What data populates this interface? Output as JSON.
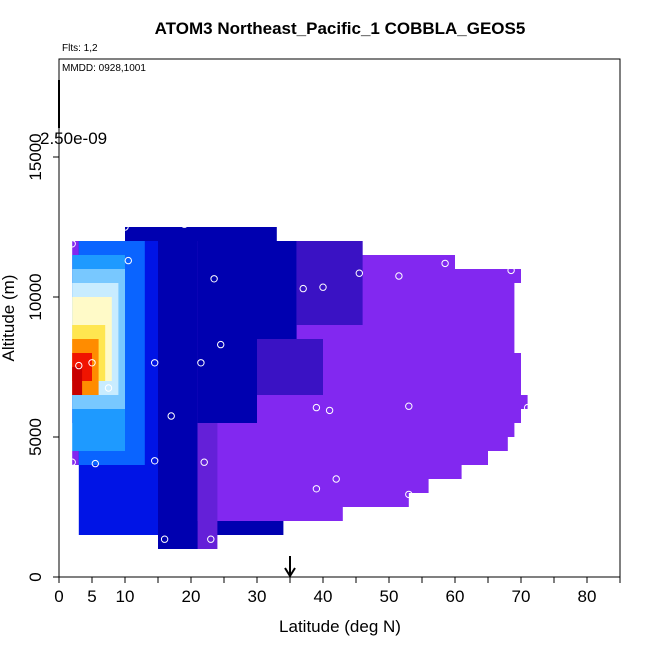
{
  "chart_data": {
    "type": "heatmap",
    "title": "ATOM3 Northeast_Pacific_1 COBBLA_GEOS5",
    "flights_label": "Flts: 1,2",
    "dates_label": "MMDD: 0928,1001",
    "colorbar_label": "2.50e-09",
    "xlabel": "Latitude (deg N)",
    "ylabel": "Altitude (m)",
    "xlim": [
      0,
      85
    ],
    "ylim": [
      0,
      18500
    ],
    "xticks": [
      0,
      5,
      10,
      20,
      30,
      40,
      50,
      60,
      70,
      80
    ],
    "xticks_minor": [
      15,
      25,
      35,
      45,
      55,
      65,
      75,
      85
    ],
    "yticks": [
      0,
      5000,
      10000,
      15000
    ],
    "marker_latitude": 35,
    "colors": {
      "purple": "#8228f0",
      "violet": "#6420d8",
      "indigo": "#3a12c4",
      "darkblue": "#0000b0",
      "blue": "#0014e6",
      "mid": "#0a64ff",
      "sky": "#1e9aff",
      "lightblue": "#78c8ff",
      "paleblue": "#c8ecff",
      "cream": "#fffac8",
      "yellow": "#ffe650",
      "orange": "#ff8c00",
      "red": "#f01400",
      "darkred": "#c80000"
    },
    "field": [
      {
        "lat_min": 16.0,
        "lat_max": 23.0,
        "alt_min": 1000,
        "alt_max": 1500,
        "color": "darkblue"
      },
      {
        "lat_min": 14.0,
        "lat_max": 34.0,
        "alt_min": 1500,
        "alt_max": 2000,
        "color": "darkblue"
      },
      {
        "lat_min": 12.0,
        "lat_max": 43.0,
        "alt_min": 2000,
        "alt_max": 2500,
        "color": "purple"
      },
      {
        "lat_min": 10.0,
        "lat_max": 53.0,
        "alt_min": 2500,
        "alt_max": 3000,
        "color": "purple"
      },
      {
        "lat_min": 8.0,
        "lat_max": 56.0,
        "alt_min": 3000,
        "alt_max": 3500,
        "color": "purple"
      },
      {
        "lat_min": 5.0,
        "lat_max": 61.0,
        "alt_min": 3500,
        "alt_max": 4000,
        "color": "purple"
      },
      {
        "lat_min": 2.0,
        "lat_max": 65.0,
        "alt_min": 4000,
        "alt_max": 4500,
        "color": "purple"
      },
      {
        "lat_min": 3.0,
        "lat_max": 68.0,
        "alt_min": 4500,
        "alt_max": 5000,
        "color": "purple"
      },
      {
        "lat_min": 3.0,
        "lat_max": 69.0,
        "alt_min": 5000,
        "alt_max": 5500,
        "color": "purple"
      },
      {
        "lat_min": 2.0,
        "lat_max": 70.0,
        "alt_min": 5500,
        "alt_max": 6000,
        "color": "purple"
      },
      {
        "lat_min": 2.0,
        "lat_max": 71.0,
        "alt_min": 6000,
        "alt_max": 6500,
        "color": "purple"
      },
      {
        "lat_min": 2.0,
        "lat_max": 70.0,
        "alt_min": 6500,
        "alt_max": 7000,
        "color": "purple"
      },
      {
        "lat_min": 2.0,
        "lat_max": 70.0,
        "alt_min": 7000,
        "alt_max": 7500,
        "color": "purple"
      },
      {
        "lat_min": 2.0,
        "lat_max": 70.0,
        "alt_min": 7500,
        "alt_max": 8000,
        "color": "purple"
      },
      {
        "lat_min": 2.0,
        "lat_max": 69.0,
        "alt_min": 8000,
        "alt_max": 8500,
        "color": "purple"
      },
      {
        "lat_min": 2.0,
        "lat_max": 69.0,
        "alt_min": 8500,
        "alt_max": 9000,
        "color": "purple"
      },
      {
        "lat_min": 2.0,
        "lat_max": 69.0,
        "alt_min": 9000,
        "alt_max": 9500,
        "color": "purple"
      },
      {
        "lat_min": 2.0,
        "lat_max": 69.0,
        "alt_min": 9500,
        "alt_max": 10000,
        "color": "purple"
      },
      {
        "lat_min": 2.0,
        "lat_max": 69.0,
        "alt_min": 10000,
        "alt_max": 10500,
        "color": "purple"
      },
      {
        "lat_min": 2.0,
        "lat_max": 70.0,
        "alt_min": 10500,
        "alt_max": 11000,
        "color": "purple"
      },
      {
        "lat_min": 2.0,
        "lat_max": 60.0,
        "alt_min": 11000,
        "alt_max": 11500,
        "color": "purple"
      },
      {
        "lat_min": 2.0,
        "lat_max": 46.0,
        "alt_min": 11500,
        "alt_max": 12000,
        "color": "purple"
      },
      {
        "lat_min": 10.0,
        "lat_max": 33.0,
        "alt_min": 12000,
        "alt_max": 12500,
        "color": "darkblue"
      },
      {
        "lat_min": 15.0,
        "lat_max": 21.0,
        "alt_min": 1000,
        "alt_max": 12500,
        "color": "darkblue"
      },
      {
        "lat_min": 21.0,
        "lat_max": 36.0,
        "alt_min": 8500,
        "alt_max": 12000,
        "color": "darkblue"
      },
      {
        "lat_min": 36.0,
        "lat_max": 46.0,
        "alt_min": 9000,
        "alt_max": 12000,
        "color": "indigo"
      },
      {
        "lat_min": 21.0,
        "lat_max": 30.0,
        "alt_min": 5500,
        "alt_max": 8500,
        "color": "darkblue"
      },
      {
        "lat_min": 30.0,
        "lat_max": 40.0,
        "alt_min": 6500,
        "alt_max": 8500,
        "color": "indigo"
      },
      {
        "lat_min": 21.0,
        "lat_max": 24.0,
        "alt_min": 1000,
        "alt_max": 5500,
        "color": "violet"
      },
      {
        "lat_min": 3.0,
        "lat_max": 15.0,
        "alt_min": 1500,
        "alt_max": 12000,
        "color": "blue"
      },
      {
        "lat_min": 3.0,
        "lat_max": 13.0,
        "alt_min": 4000,
        "alt_max": 12000,
        "color": "mid"
      },
      {
        "lat_min": 2.0,
        "lat_max": 10.0,
        "alt_min": 4500,
        "alt_max": 11500,
        "color": "sky"
      },
      {
        "lat_min": 2.0,
        "lat_max": 10.0,
        "alt_min": 6000,
        "alt_max": 11000,
        "color": "lightblue"
      },
      {
        "lat_min": 2.0,
        "lat_max": 9.0,
        "alt_min": 6500,
        "alt_max": 10500,
        "color": "paleblue"
      },
      {
        "lat_min": 2.0,
        "lat_max": 8.0,
        "alt_min": 7000,
        "alt_max": 10000,
        "color": "cream"
      },
      {
        "lat_min": 2.0,
        "lat_max": 7.0,
        "alt_min": 7000,
        "alt_max": 9000,
        "color": "yellow"
      },
      {
        "lat_min": 2.0,
        "lat_max": 6.0,
        "alt_min": 6500,
        "alt_max": 8500,
        "color": "orange"
      },
      {
        "lat_min": 2.0,
        "lat_max": 5.0,
        "alt_min": 7000,
        "alt_max": 8000,
        "color": "red"
      },
      {
        "lat_min": 2.0,
        "lat_max": 3.5,
        "alt_min": 6500,
        "alt_max": 7500,
        "color": "darkred"
      }
    ],
    "observations": [
      {
        "lat": 2.0,
        "alt": 11900
      },
      {
        "lat": 10.0,
        "alt": 12500
      },
      {
        "lat": 19.0,
        "alt": 12600
      },
      {
        "lat": 10.5,
        "alt": 11300
      },
      {
        "lat": 23.5,
        "alt": 10650
      },
      {
        "lat": 37.0,
        "alt": 10300
      },
      {
        "lat": 40.0,
        "alt": 10350
      },
      {
        "lat": 45.5,
        "alt": 10850
      },
      {
        "lat": 51.5,
        "alt": 10750
      },
      {
        "lat": 58.5,
        "alt": 11200
      },
      {
        "lat": 68.5,
        "alt": 10950
      },
      {
        "lat": 24.5,
        "alt": 8300
      },
      {
        "lat": 14.5,
        "alt": 7650
      },
      {
        "lat": 21.5,
        "alt": 7650
      },
      {
        "lat": 5.0,
        "alt": 7650
      },
      {
        "lat": 3.0,
        "alt": 7550
      },
      {
        "lat": 7.5,
        "alt": 6750
      },
      {
        "lat": 17.0,
        "alt": 5750
      },
      {
        "lat": 39.0,
        "alt": 6050
      },
      {
        "lat": 41.0,
        "alt": 5950
      },
      {
        "lat": 53.0,
        "alt": 6100
      },
      {
        "lat": 71.0,
        "alt": 6050
      },
      {
        "lat": 2.0,
        "alt": 4100
      },
      {
        "lat": 5.5,
        "alt": 4050
      },
      {
        "lat": 14.5,
        "alt": 4150
      },
      {
        "lat": 22.0,
        "alt": 4100
      },
      {
        "lat": 42.0,
        "alt": 3500
      },
      {
        "lat": 39.0,
        "alt": 3150
      },
      {
        "lat": 53.0,
        "alt": 2950
      },
      {
        "lat": 16.0,
        "alt": 1350
      },
      {
        "lat": 23.0,
        "alt": 1350
      }
    ]
  }
}
